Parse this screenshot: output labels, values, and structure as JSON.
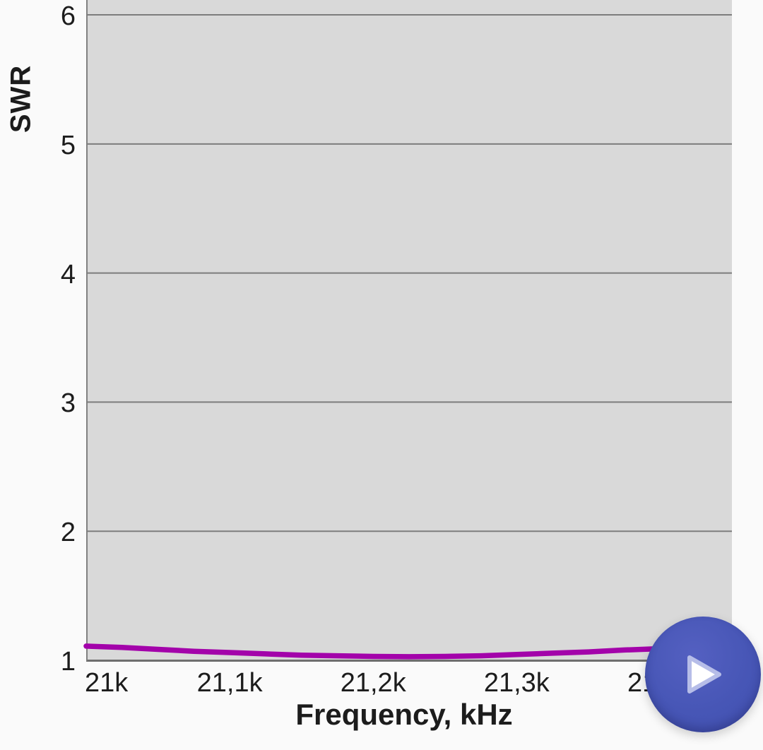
{
  "chart_data": {
    "type": "line",
    "title": "",
    "xlabel": "Frequency, kHz",
    "ylabel": "SWR",
    "xlim": [
      21.0,
      21.45
    ],
    "ylim": [
      1,
      6.115
    ],
    "grid": "horizontal",
    "legend": "none",
    "plot_background": "#d9d9d9",
    "gridline_color": "#7d7d7d",
    "axis_color": "#6e6e6e",
    "label_color": "#1c1c1c",
    "x_ticks": [
      {
        "value": 21.0,
        "label": "21k"
      },
      {
        "value": 21.1,
        "label": "21,1k"
      },
      {
        "value": 21.2,
        "label": "21,2k"
      },
      {
        "value": 21.3,
        "label": "21,3k"
      },
      {
        "value": 21.4,
        "label": "21,4k"
      }
    ],
    "y_ticks": [
      {
        "value": 1,
        "label": "1"
      },
      {
        "value": 2,
        "label": "2"
      },
      {
        "value": 3,
        "label": "3"
      },
      {
        "value": 4,
        "label": "4"
      },
      {
        "value": 5,
        "label": "5"
      },
      {
        "value": 6,
        "label": "6"
      }
    ],
    "series": [
      {
        "name": "SWR",
        "color": "#a303aa",
        "stroke_width": 7.5,
        "x": [
          21.0,
          21.025,
          21.05,
          21.075,
          21.1,
          21.125,
          21.15,
          21.175,
          21.2,
          21.225,
          21.25,
          21.275,
          21.3,
          21.325,
          21.35,
          21.375,
          21.4,
          21.425,
          21.45
        ],
        "y": [
          1.11,
          1.1,
          1.085,
          1.07,
          1.06,
          1.05,
          1.04,
          1.035,
          1.03,
          1.028,
          1.03,
          1.035,
          1.045,
          1.055,
          1.065,
          1.08,
          1.09,
          1.095,
          1.1
        ]
      }
    ]
  },
  "fab": {
    "label": "play",
    "icon": "play-icon",
    "background_color": "#4453b4",
    "icon_color": "#ffffff"
  }
}
